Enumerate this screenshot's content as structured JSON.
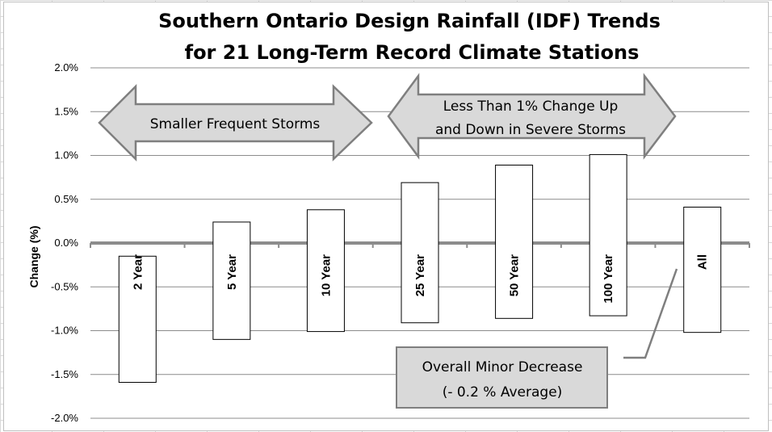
{
  "chart_data": {
    "type": "bar",
    "title": [
      "Southern Ontario Design Rainfall (IDF) Trends",
      "for 21 Long-Term Record Climate Stations"
    ],
    "ylabel": "Change (%)",
    "ylim": [
      -2.0,
      2.0
    ],
    "yticks": [
      2.0,
      1.5,
      1.0,
      0.5,
      0.0,
      -0.5,
      -1.0,
      -1.5,
      -2.0
    ],
    "ytick_labels": [
      "2.0%",
      "1.5%",
      "1.0%",
      "0.5%",
      "0.0%",
      "-0.5%",
      "-1.0%",
      "-1.5%",
      "-2.0%"
    ],
    "categories": [
      "2 Year",
      "5 Year",
      "10 Year",
      "25 Year",
      "50 Year",
      "100 Year",
      "All"
    ],
    "ranges": [
      {
        "low": -1.59,
        "high": -0.15
      },
      {
        "low": -1.1,
        "high": 0.24
      },
      {
        "low": -1.01,
        "high": 0.38
      },
      {
        "low": -0.91,
        "high": 0.69
      },
      {
        "low": -0.86,
        "high": 0.89
      },
      {
        "low": -0.83,
        "high": 1.01
      },
      {
        "low": -1.02,
        "high": 0.41
      }
    ],
    "grid": true,
    "legend": "none",
    "annotations": {
      "left_arrow": "Smaller Frequent Storms",
      "right_arrow": [
        "Less Than 1% Change Up",
        "and Down in Severe Storms"
      ],
      "callout": [
        "Overall Minor Decrease",
        "(- 0.2 % Average)"
      ]
    }
  },
  "colors": {
    "bar_fill": "#ffffff",
    "bar_stroke": "#000000",
    "gridline": "#8c8c8c",
    "zero_line": "#8c8c8c",
    "arrow_fill": "#d9d9d9",
    "arrow_stroke": "#7f7f7f"
  }
}
